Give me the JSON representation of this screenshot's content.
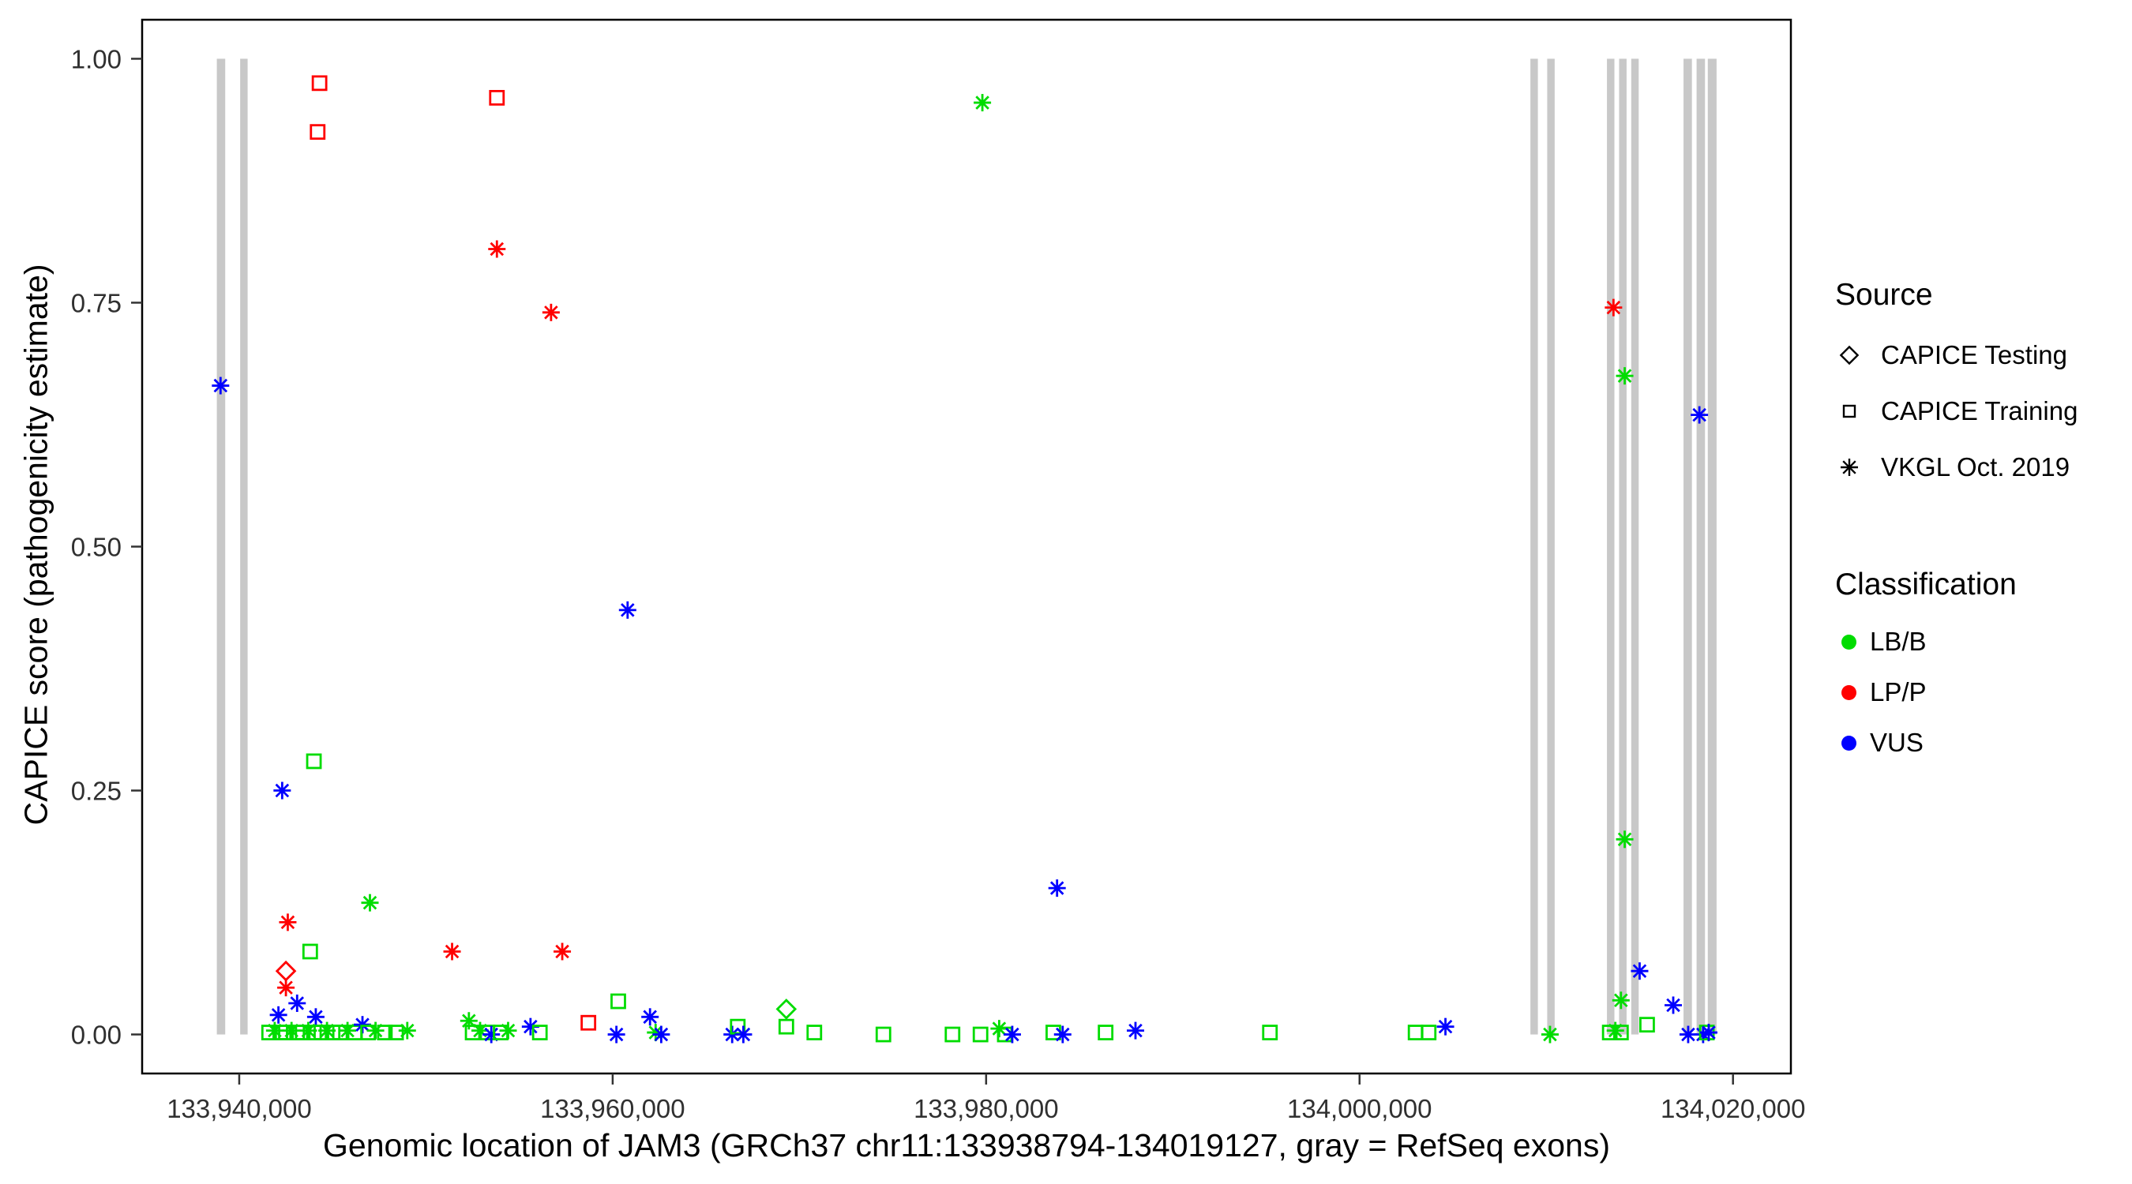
{
  "figure": {
    "background": "#FFFFFF"
  },
  "legend": {
    "source_title": "Source",
    "source_items": [
      {
        "label": "CAPICE Testing",
        "marker": "diamond"
      },
      {
        "label": "CAPICE Training",
        "marker": "square"
      },
      {
        "label": "VKGL Oct. 2019",
        "marker": "asterisk"
      }
    ],
    "classification_title": "Classification",
    "classification_items": [
      {
        "label": "LB/B",
        "color": "#00DC00"
      },
      {
        "label": "LP/P",
        "color": "#FF0000"
      },
      {
        "label": "VUS",
        "color": "#0000FF"
      }
    ]
  },
  "chart_data": {
    "type": "scatter",
    "title": "",
    "xlabel": "Genomic location of JAM3 (GRCh37 chr11:133938794-134019127, gray = RefSeq exons)",
    "ylabel": "CAPICE score (pathogenicity estimate)",
    "xlim": [
      133934800,
      134023100
    ],
    "ylim": [
      -0.04,
      1.04
    ],
    "grid": false,
    "legend_position": "right",
    "x_ticks": [
      {
        "v": 133940000,
        "label": "133,940,000"
      },
      {
        "v": 133960000,
        "label": "133,960,000"
      },
      {
        "v": 133980000,
        "label": "133,980,000"
      },
      {
        "v": 134000000,
        "label": "134,000,000"
      },
      {
        "v": 134020000,
        "label": "134,020,000"
      }
    ],
    "y_ticks": [
      {
        "v": 0.0,
        "label": "0.00"
      },
      {
        "v": 0.25,
        "label": "0.25"
      },
      {
        "v": 0.5,
        "label": "0.50"
      },
      {
        "v": 0.75,
        "label": "0.75"
      },
      {
        "v": 1.0,
        "label": "1.00"
      }
    ],
    "colors": {
      "LB/B": "#00DC00",
      "LP/P": "#FF0000",
      "VUS": "#0000FF"
    },
    "exon_color": "#C8C8C8",
    "source_shapes": {
      "testing": "diamond",
      "training": "square",
      "vkgl": "asterisk"
    },
    "source_labels": {
      "testing": "CAPICE Testing",
      "training": "CAPICE Training",
      "vkgl": "VKGL Oct. 2019"
    },
    "exons": [
      [
        133938800,
        133939250
      ],
      [
        133940050,
        133940450
      ],
      [
        134009150,
        134009550
      ],
      [
        134010050,
        134010450
      ],
      [
        134013250,
        134013650
      ],
      [
        134013900,
        134014300
      ],
      [
        134014550,
        134014950
      ],
      [
        134017350,
        134017800
      ],
      [
        134018050,
        134018500
      ],
      [
        134018650,
        134019120
      ]
    ],
    "point_format": [
      "x",
      "y",
      "classification",
      "source"
    ],
    "points": [
      [
        133944300,
        0.975,
        "LP/P",
        "training"
      ],
      [
        133944200,
        0.925,
        "LP/P",
        "training"
      ],
      [
        133953800,
        0.96,
        "LP/P",
        "training"
      ],
      [
        133953800,
        0.805,
        "LP/P",
        "vkgl"
      ],
      [
        133956700,
        0.74,
        "LP/P",
        "vkgl"
      ],
      [
        134013600,
        0.745,
        "LP/P",
        "vkgl"
      ],
      [
        133979800,
        0.955,
        "LB/B",
        "vkgl"
      ],
      [
        134014200,
        0.675,
        "LB/B",
        "vkgl"
      ],
      [
        133939000,
        0.665,
        "VUS",
        "vkgl"
      ],
      [
        134018200,
        0.635,
        "VUS",
        "vkgl"
      ],
      [
        133960800,
        0.435,
        "VUS",
        "vkgl"
      ],
      [
        133944000,
        0.28,
        "LB/B",
        "training"
      ],
      [
        133942300,
        0.25,
        "VUS",
        "vkgl"
      ],
      [
        134014200,
        0.2,
        "LB/B",
        "vkgl"
      ],
      [
        133983800,
        0.15,
        "VUS",
        "vkgl"
      ],
      [
        133947000,
        0.135,
        "LB/B",
        "vkgl"
      ],
      [
        133942600,
        0.115,
        "LP/P",
        "vkgl"
      ],
      [
        133943800,
        0.085,
        "LB/B",
        "training"
      ],
      [
        133951400,
        0.085,
        "LP/P",
        "vkgl"
      ],
      [
        133957300,
        0.085,
        "LP/P",
        "vkgl"
      ],
      [
        133942500,
        0.065,
        "LP/P",
        "testing"
      ],
      [
        133942500,
        0.048,
        "LP/P",
        "vkgl"
      ],
      [
        134015000,
        0.065,
        "VUS",
        "vkgl"
      ],
      [
        134016800,
        0.03,
        "VUS",
        "vkgl"
      ],
      [
        134014000,
        0.035,
        "LB/B",
        "vkgl"
      ],
      [
        133943100,
        0.032,
        "VUS",
        "vkgl"
      ],
      [
        133942100,
        0.02,
        "VUS",
        "vkgl"
      ],
      [
        133944100,
        0.018,
        "VUS",
        "vkgl"
      ],
      [
        133960300,
        0.034,
        "LB/B",
        "training"
      ],
      [
        133969300,
        0.026,
        "LB/B",
        "testing"
      ],
      [
        133969300,
        0.008,
        "LB/B",
        "training"
      ],
      [
        133958700,
        0.012,
        "LP/P",
        "training"
      ],
      [
        133941600,
        0.002,
        "LB/B",
        "training"
      ],
      [
        133941900,
        0.004,
        "LB/B",
        "vkgl"
      ],
      [
        133942200,
        0.002,
        "LB/B",
        "training"
      ],
      [
        133942500,
        0.002,
        "LB/B",
        "training"
      ],
      [
        133942800,
        0.004,
        "LB/B",
        "vkgl"
      ],
      [
        133943100,
        0.002,
        "LB/B",
        "training"
      ],
      [
        133943400,
        0.002,
        "LB/B",
        "training"
      ],
      [
        133943700,
        0.004,
        "LB/B",
        "vkgl"
      ],
      [
        133944000,
        0.002,
        "LB/B",
        "training"
      ],
      [
        133944400,
        0.002,
        "LB/B",
        "training"
      ],
      [
        133944700,
        0.004,
        "LB/B",
        "vkgl"
      ],
      [
        133945000,
        0.002,
        "LB/B",
        "training"
      ],
      [
        133945400,
        0.002,
        "LB/B",
        "training"
      ],
      [
        133945800,
        0.004,
        "LB/B",
        "vkgl"
      ],
      [
        133946200,
        0.002,
        "LB/B",
        "training"
      ],
      [
        133946600,
        0.01,
        "VUS",
        "vkgl"
      ],
      [
        133946900,
        0.002,
        "LB/B",
        "training"
      ],
      [
        133947300,
        0.004,
        "LB/B",
        "vkgl"
      ],
      [
        133947800,
        0.002,
        "LB/B",
        "training"
      ],
      [
        133948400,
        0.002,
        "LB/B",
        "training"
      ],
      [
        133949000,
        0.004,
        "LB/B",
        "vkgl"
      ],
      [
        133952300,
        0.014,
        "LB/B",
        "vkgl"
      ],
      [
        133952500,
        0.002,
        "LB/B",
        "training"
      ],
      [
        133952900,
        0.004,
        "LB/B",
        "vkgl"
      ],
      [
        133953300,
        0.002,
        "LB/B",
        "training"
      ],
      [
        133953500,
        0.0,
        "VUS",
        "vkgl"
      ],
      [
        133954000,
        0.002,
        "LB/B",
        "training"
      ],
      [
        133954400,
        0.004,
        "LB/B",
        "vkgl"
      ],
      [
        133955600,
        0.008,
        "VUS",
        "vkgl"
      ],
      [
        133956100,
        0.002,
        "LB/B",
        "training"
      ],
      [
        133960200,
        0.0,
        "VUS",
        "vkgl"
      ],
      [
        133962000,
        0.018,
        "VUS",
        "vkgl"
      ],
      [
        133962300,
        0.002,
        "LB/B",
        "vkgl"
      ],
      [
        133962600,
        0.0,
        "VUS",
        "vkgl"
      ],
      [
        133966400,
        0.0,
        "VUS",
        "vkgl"
      ],
      [
        133966700,
        0.008,
        "LB/B",
        "training"
      ],
      [
        133967000,
        0.0,
        "VUS",
        "vkgl"
      ],
      [
        133970800,
        0.002,
        "LB/B",
        "training"
      ],
      [
        133974500,
        0.0,
        "LB/B",
        "training"
      ],
      [
        133978200,
        0.0,
        "LB/B",
        "training"
      ],
      [
        133979700,
        0.0,
        "LB/B",
        "training"
      ],
      [
        133980700,
        0.006,
        "LB/B",
        "vkgl"
      ],
      [
        133981000,
        0.0,
        "LB/B",
        "training"
      ],
      [
        133981400,
        0.0,
        "VUS",
        "vkgl"
      ],
      [
        133983600,
        0.002,
        "LB/B",
        "training"
      ],
      [
        133984100,
        0.0,
        "VUS",
        "vkgl"
      ],
      [
        133986400,
        0.002,
        "LB/B",
        "training"
      ],
      [
        133988000,
        0.004,
        "VUS",
        "vkgl"
      ],
      [
        133995200,
        0.002,
        "LB/B",
        "training"
      ],
      [
        134003000,
        0.002,
        "LB/B",
        "training"
      ],
      [
        134003700,
        0.002,
        "LB/B",
        "training"
      ],
      [
        134004600,
        0.008,
        "VUS",
        "vkgl"
      ],
      [
        134010200,
        0.0,
        "LB/B",
        "vkgl"
      ],
      [
        134013400,
        0.002,
        "LB/B",
        "training"
      ],
      [
        134013700,
        0.004,
        "LB/B",
        "vkgl"
      ],
      [
        134014000,
        0.002,
        "LB/B",
        "training"
      ],
      [
        134015400,
        0.01,
        "LB/B",
        "training"
      ],
      [
        134017600,
        0.0,
        "VUS",
        "vkgl"
      ],
      [
        134018400,
        0.0,
        "VUS",
        "vkgl"
      ],
      [
        134018600,
        0.002,
        "LB/B",
        "training"
      ],
      [
        134018700,
        0.002,
        "VUS",
        "vkgl"
      ]
    ]
  }
}
